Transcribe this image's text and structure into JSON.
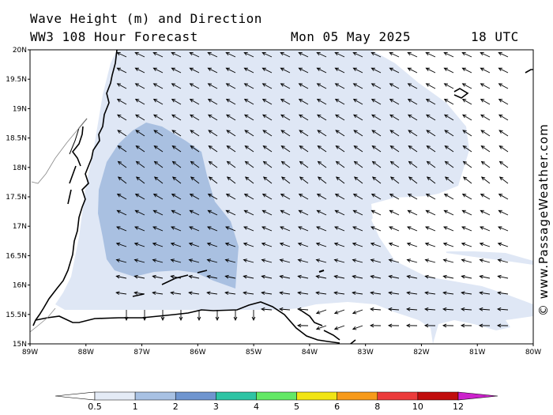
{
  "header": {
    "title": "Wave Height (m) and Direction",
    "model": "WW3 108 Hour Forecast",
    "date": "Mon 05 May 2025",
    "time": "18 UTC"
  },
  "credit": "© www.PassageWeather.com",
  "axes": {
    "lat_labels": [
      "20N",
      "19.5N",
      "19N",
      "18.5N",
      "18N",
      "17.5N",
      "17N",
      "16.5N",
      "16N",
      "15.5N",
      "15N"
    ],
    "lon_labels": [
      "89W",
      "88W",
      "87W",
      "86W",
      "85W",
      "84W",
      "83W",
      "82W",
      "81W",
      "80W"
    ]
  },
  "colorbar": {
    "labels": [
      "0.5",
      "1",
      "2",
      "3",
      "4",
      "5",
      "6",
      "8",
      "10",
      "12"
    ],
    "colors": [
      "#e4ebf6",
      "#a8c1e3",
      "#6f95cf",
      "#2ec4a4",
      "#63e865",
      "#f1e414",
      "#f79a1a",
      "#ec3b3b",
      "#c10d0d",
      "#cc22cc"
    ]
  },
  "colors": {
    "wave_light": "#dfe7f5",
    "wave_medium": "#a9c0e1",
    "land_outline": "#000000",
    "arrow": "#000000"
  }
}
